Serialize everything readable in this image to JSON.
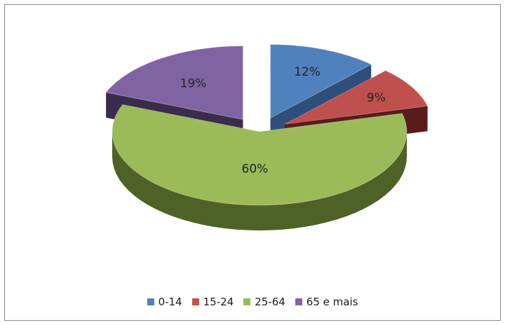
{
  "chart_data": {
    "type": "pie",
    "style": "3d-exploded",
    "categories": [
      "0-14",
      "15-24",
      "25-64",
      "65 e mais"
    ],
    "values": [
      12,
      9,
      60,
      19
    ],
    "labels": [
      "12%",
      "9%",
      "60%",
      "19%"
    ],
    "colors": [
      "#4f81bd",
      "#c0504d",
      "#9bbb59",
      "#8064a2"
    ],
    "side_colors": [
      "#2f4f7a",
      "#5a1c1b",
      "#4e6227",
      "#3a2c4c"
    ],
    "title": "",
    "legend_position": "bottom"
  }
}
